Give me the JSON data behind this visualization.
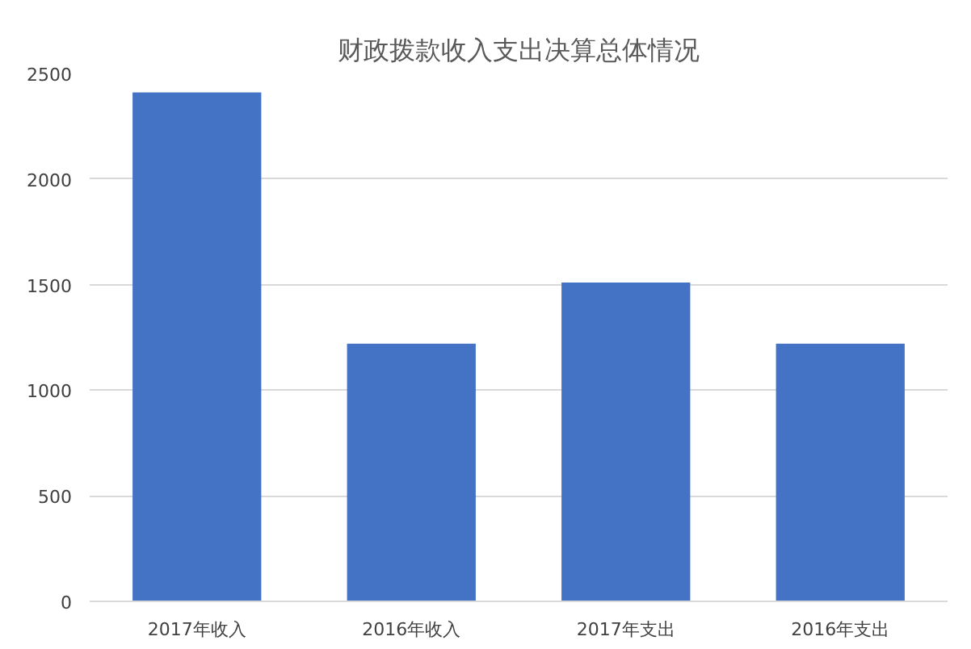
{
  "chart_data": {
    "type": "bar",
    "title": "财政拨款收入支出决算总体情况",
    "categories": [
      "2017年收入",
      "2016年收入",
      "2017年支出",
      "2016年支出"
    ],
    "values": [
      2410,
      1220,
      1510,
      1220
    ],
    "color": "#4472c4",
    "ylim": [
      0,
      2500
    ],
    "yticks": [
      0,
      500,
      1000,
      1500,
      2000,
      2500
    ],
    "grid": "y"
  }
}
